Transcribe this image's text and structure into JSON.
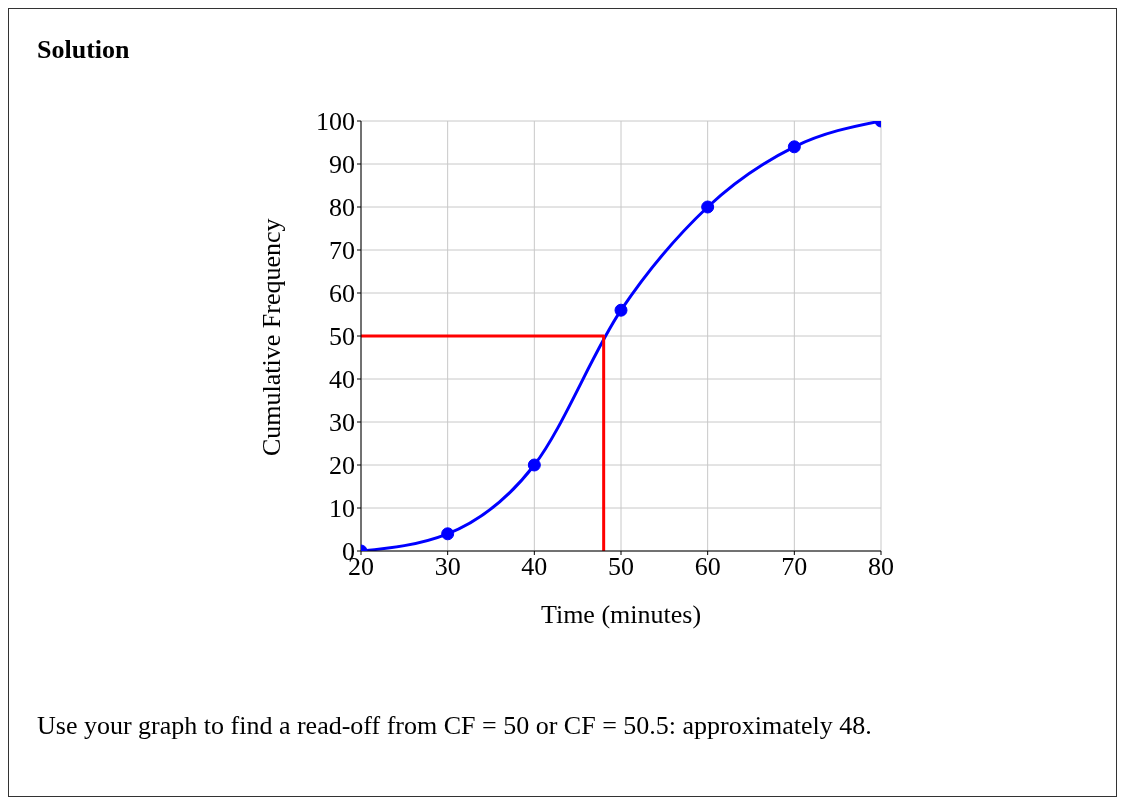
{
  "chart_data": {
    "type": "line",
    "title": "Solution",
    "xlabel": "Time (minutes)",
    "ylabel": "Cumulative Frequency",
    "xlim": [
      20,
      80
    ],
    "xticks": [
      20,
      30,
      40,
      50,
      60,
      70,
      80
    ],
    "ylim": [
      0,
      100
    ],
    "yticks": [
      0,
      10,
      20,
      30,
      40,
      50,
      60,
      70,
      80,
      90,
      100
    ],
    "grid": true,
    "marker": "circle",
    "series": [
      {
        "color": "#0000ff",
        "x": [
          20,
          30,
          40,
          50,
          60,
          70,
          80
        ],
        "values": [
          0,
          4,
          20,
          56,
          80,
          94,
          100
        ]
      },
      {
        "color": "#ff0000",
        "marker": "none",
        "x": [
          20,
          48,
          48
        ],
        "values": [
          50,
          50,
          0
        ]
      }
    ],
    "annotations": [
      "Use your graph to find a read-off from CF = 50 or CF = 50.5: approximately 48."
    ]
  }
}
